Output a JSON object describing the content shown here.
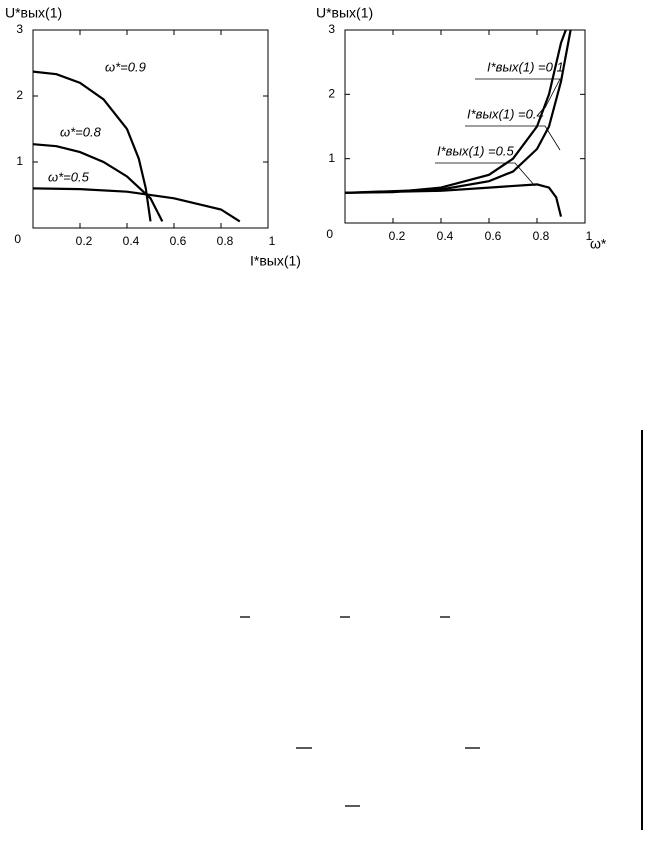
{
  "chart_data": [
    {
      "type": "line",
      "x_label": "I*вых(1)",
      "y_label": "U*вых(1)",
      "xlim": [
        0,
        1
      ],
      "ylim": [
        0,
        3
      ],
      "xticks": [
        0.2,
        0.4,
        0.6,
        0.8,
        1
      ],
      "yticks": [
        0,
        1,
        2,
        3
      ],
      "color": "#000000",
      "series": [
        {
          "name": "ω*=0.9",
          "x": [
            0,
            0.1,
            0.2,
            0.3,
            0.4,
            0.45,
            0.48,
            0.5
          ],
          "values": [
            2.37,
            2.33,
            2.2,
            1.95,
            1.5,
            1.05,
            0.6,
            0.1
          ]
        },
        {
          "name": "ω*=0.8",
          "x": [
            0,
            0.1,
            0.2,
            0.3,
            0.4,
            0.5,
            0.55
          ],
          "values": [
            1.27,
            1.24,
            1.15,
            1.0,
            0.78,
            0.45,
            0.1
          ]
        },
        {
          "name": "ω*=0.5",
          "x": [
            0,
            0.2,
            0.4,
            0.6,
            0.8,
            0.88
          ],
          "values": [
            0.6,
            0.59,
            0.55,
            0.45,
            0.28,
            0.1
          ]
        }
      ]
    },
    {
      "type": "line",
      "x_label": "ω*",
      "y_label": "U*вых(1)",
      "xlim": [
        0,
        1
      ],
      "ylim": [
        0,
        3
      ],
      "xticks": [
        0.2,
        0.4,
        0.6,
        0.8,
        1
      ],
      "yticks": [
        0,
        1,
        2,
        3
      ],
      "color": "#000000",
      "series": [
        {
          "name": "I*вых(1) =0.1",
          "x": [
            0,
            0.2,
            0.4,
            0.6,
            0.7,
            0.8,
            0.85,
            0.9,
            0.92
          ],
          "values": [
            0.47,
            0.48,
            0.55,
            0.75,
            1.0,
            1.5,
            2.0,
            2.8,
            3
          ]
        },
        {
          "name": "I*вых(1) =0.4",
          "x": [
            0,
            0.4,
            0.6,
            0.7,
            0.8,
            0.85,
            0.9,
            0.94
          ],
          "values": [
            0.47,
            0.52,
            0.65,
            0.8,
            1.15,
            1.5,
            2.2,
            3
          ]
        },
        {
          "name": "I*вых(1) =0.5",
          "x": [
            0,
            0.4,
            0.6,
            0.8,
            0.85,
            0.88,
            0.9
          ],
          "values": [
            0.47,
            0.5,
            0.55,
            0.6,
            0.55,
            0.4,
            0.1
          ]
        }
      ]
    }
  ]
}
